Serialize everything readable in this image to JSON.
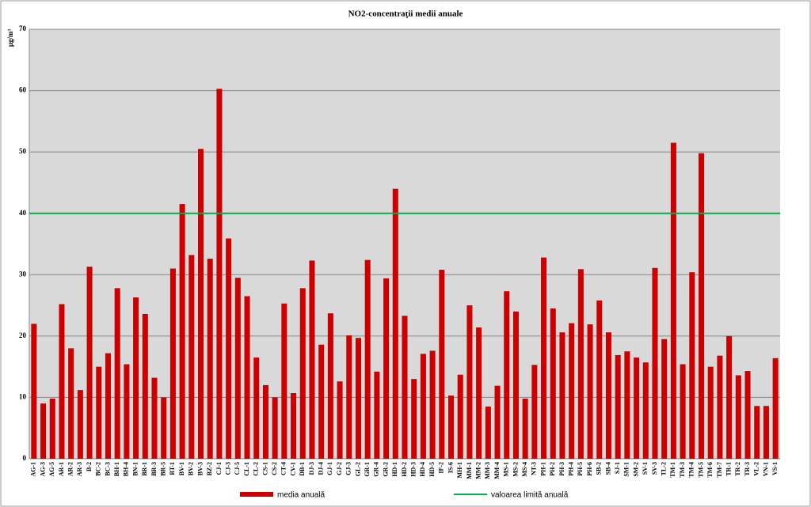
{
  "chart_data": {
    "type": "bar",
    "title": "NO2-concentraţii  medii anuale",
    "y_label": "µg/m³",
    "categories": [
      "AG-1",
      "AG-3",
      "AG-5",
      "AR-1",
      "AR-2",
      "AR-3",
      "B-2",
      "BC-2",
      "BC-3",
      "BH-1",
      "BH-4",
      "BN-1",
      "BR-1",
      "BR-3",
      "BR-5",
      "BT-1",
      "BV-1",
      "BV-2",
      "BV-3",
      "BZ-2",
      "CJ-1",
      "CJ-3",
      "CJ-5",
      "CL-1",
      "CL-2",
      "CS-1",
      "CS-2",
      "CT-4",
      "CV-1",
      "DB-1",
      "DJ-3",
      "DJ-4",
      "GJ-1",
      "GJ-2",
      "GJ-3",
      "GL-2",
      "GR-1",
      "GR-4",
      "GR-2",
      "HD-1",
      "HD-2",
      "HD-3",
      "HD-4",
      "HD-5",
      "IF-2",
      "IS-6",
      "MH-1",
      "MM-1",
      "MM-2",
      "MM-3",
      "MM-4",
      "MS-1",
      "MS-2",
      "MS-4",
      "NT-3",
      "PH-1",
      "PH-2",
      "PH-3",
      "PH-4",
      "PH-5",
      "PH-6",
      "SB-2",
      "SB-4",
      "SJ-1",
      "SM-1",
      "SM-2",
      "SV-1",
      "SV-3",
      "TL-2",
      "TM-1",
      "TM-3",
      "TM-4",
      "TM-5",
      "TM-6",
      "TM-7",
      "TR-1",
      "TR-2",
      "TR-3",
      "VL-2",
      "VN-1",
      "VS-1"
    ],
    "series": [
      {
        "name": "media anuală",
        "color": "#cc0000",
        "values": [
          22,
          9,
          9.8,
          25.2,
          18,
          11.2,
          31.3,
          15,
          17.2,
          27.8,
          15.4,
          26.3,
          23.6,
          13.2,
          10,
          31,
          41.5,
          33.2,
          50.5,
          32.6,
          60.3,
          35.9,
          29.5,
          26.5,
          16.5,
          12,
          10,
          25.3,
          10.7,
          27.8,
          32.3,
          18.6,
          23.7,
          12.6,
          20.1,
          19.7,
          32.4,
          14.2,
          29.4,
          44,
          23.3,
          13,
          17.1,
          17.6,
          30.8,
          10.3,
          13.7,
          25,
          21.4,
          8.5,
          11.9,
          27.3,
          24,
          9.8,
          15.3,
          32.8,
          24.5,
          20.6,
          22.1,
          30.9,
          21.9,
          25.8,
          20.6,
          16.9,
          17.5,
          16.5,
          15.7,
          31.1,
          19.5,
          51.5,
          15.4,
          30.4,
          49.8,
          15,
          16.8,
          20,
          13.6,
          14.3,
          8.6,
          8.6,
          16.4
        ]
      }
    ],
    "limit": {
      "name": "valoarea limită anuală",
      "value": 40,
      "color": "#00b050"
    },
    "ylim": [
      0,
      70
    ],
    "yticks": [
      0,
      10,
      20,
      30,
      40,
      50,
      60,
      70
    ],
    "grid": true
  }
}
